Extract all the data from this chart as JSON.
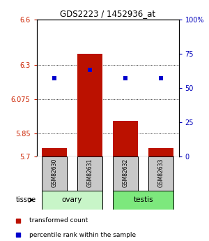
{
  "title": "GDS2223 / 1452936_at",
  "samples": [
    "GSM82630",
    "GSM82631",
    "GSM82632",
    "GSM82633"
  ],
  "red_values": [
    5.755,
    6.375,
    5.935,
    5.755
  ],
  "blue_values": [
    57,
    63,
    57,
    57
  ],
  "y_min": 5.7,
  "y_max": 6.6,
  "y_ticks": [
    5.7,
    5.85,
    6.075,
    6.3,
    6.6
  ],
  "y_right_ticks": [
    0,
    25,
    50,
    75,
    100
  ],
  "y_right_labels": [
    "0",
    "25",
    "50",
    "75",
    "100%"
  ],
  "tissue_groups": [
    {
      "label": "ovary",
      "samples": [
        0,
        1
      ],
      "color": "#c8f5c8"
    },
    {
      "label": "testis",
      "samples": [
        2,
        3
      ],
      "color": "#7de87d"
    }
  ],
  "bar_color": "#bb1100",
  "dot_color": "#0000cc",
  "axis_label_color_left": "#cc2200",
  "axis_label_color_right": "#0000bb",
  "background_color": "#ffffff",
  "legend_red": "transformed count",
  "legend_blue": "percentile rank within the sample",
  "tissue_label": "tissue",
  "sample_box_color": "#c8c8c8"
}
